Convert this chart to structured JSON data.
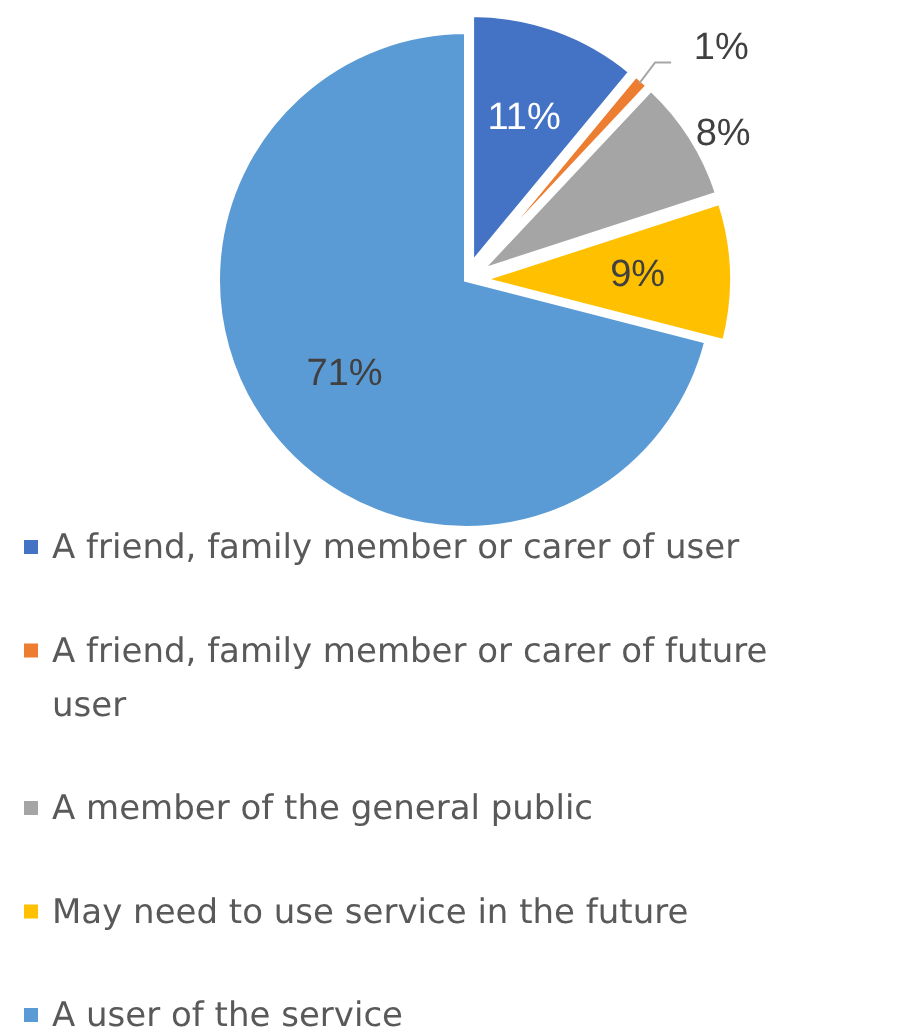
{
  "chart_data": {
    "type": "pie",
    "categories": [
      "A friend, family member or carer of user",
      "A friend, family member or carer of future user",
      "A member of the general public",
      "May need to use service in the future",
      "A user of the service"
    ],
    "values": [
      11,
      1,
      8,
      9,
      71
    ],
    "colors": [
      "#4472c4",
      "#ed7d31",
      "#a5a5a5",
      "#ffc000",
      "#5b9bd5"
    ],
    "value_labels": [
      "11%",
      "1%",
      "8%",
      "9%",
      "71%"
    ],
    "legend": "bottom"
  }
}
